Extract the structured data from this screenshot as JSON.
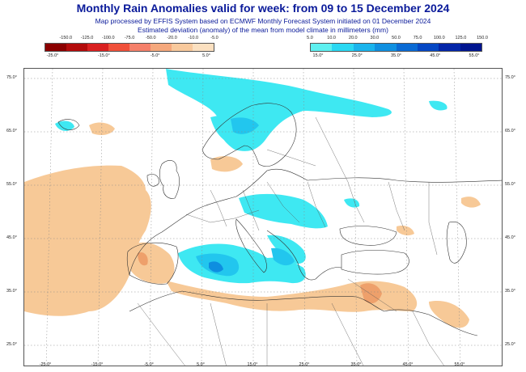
{
  "title": "Monthly Rain Anomalies valid for week: from 09 to 15 December 2024",
  "subtitle1": "Map processed by EFFIS System based on ECMWF Monthly Forecast System initiated on 01 December 2024",
  "subtitle2": "Estimated deviation (anomaly) of the mean from model climate in millimeters (mm)",
  "legend_dry": {
    "values": [
      "-150.0",
      "-125.0",
      "-100.0",
      "-75.0",
      "-50.0",
      "-20.0",
      "-10.0",
      "-5.0"
    ],
    "colors": [
      "#8b0000",
      "#b30b0b",
      "#d92020",
      "#f0503a",
      "#f5806a",
      "#f5a87c",
      "#f8c99c",
      "#fbe0c0"
    ]
  },
  "legend_wet": {
    "values": [
      "5.0",
      "10.0",
      "20.0",
      "30.0",
      "50.0",
      "75.0",
      "100.0",
      "125.0",
      "150.0"
    ],
    "colors": [
      "#5ef0f0",
      "#2ad8f2",
      "#1ab4ec",
      "#1090e0",
      "#0a6ad4",
      "#0547c4",
      "#0325a8",
      "#001590"
    ]
  },
  "lon_labels_top_left": [
    "-25.0°",
    "-15.0°",
    "-5.0°",
    "5.0°"
  ],
  "lon_labels_top_right": [
    "15.0°",
    "25.0°",
    "35.0°",
    "45.0°",
    "55.0°"
  ],
  "lon_labels_bottom": [
    "-25.0°",
    "-15.0°",
    "-5.0°",
    "5.0°",
    "15.0°",
    "25.0°",
    "35.0°",
    "45.0°",
    "55.0°"
  ],
  "lat_labels": [
    "75.0°",
    "65.0°",
    "55.0°",
    "45.0°",
    "35.0°",
    "25.0°"
  ],
  "colors": {
    "land": "#ffffff",
    "dry": "#f7c997",
    "dry_dark": "#eea06b",
    "wet": "#3ee8f2",
    "wet_mid": "#22c6ee",
    "wet_dark": "#0e8ee0",
    "border": "#333333"
  }
}
